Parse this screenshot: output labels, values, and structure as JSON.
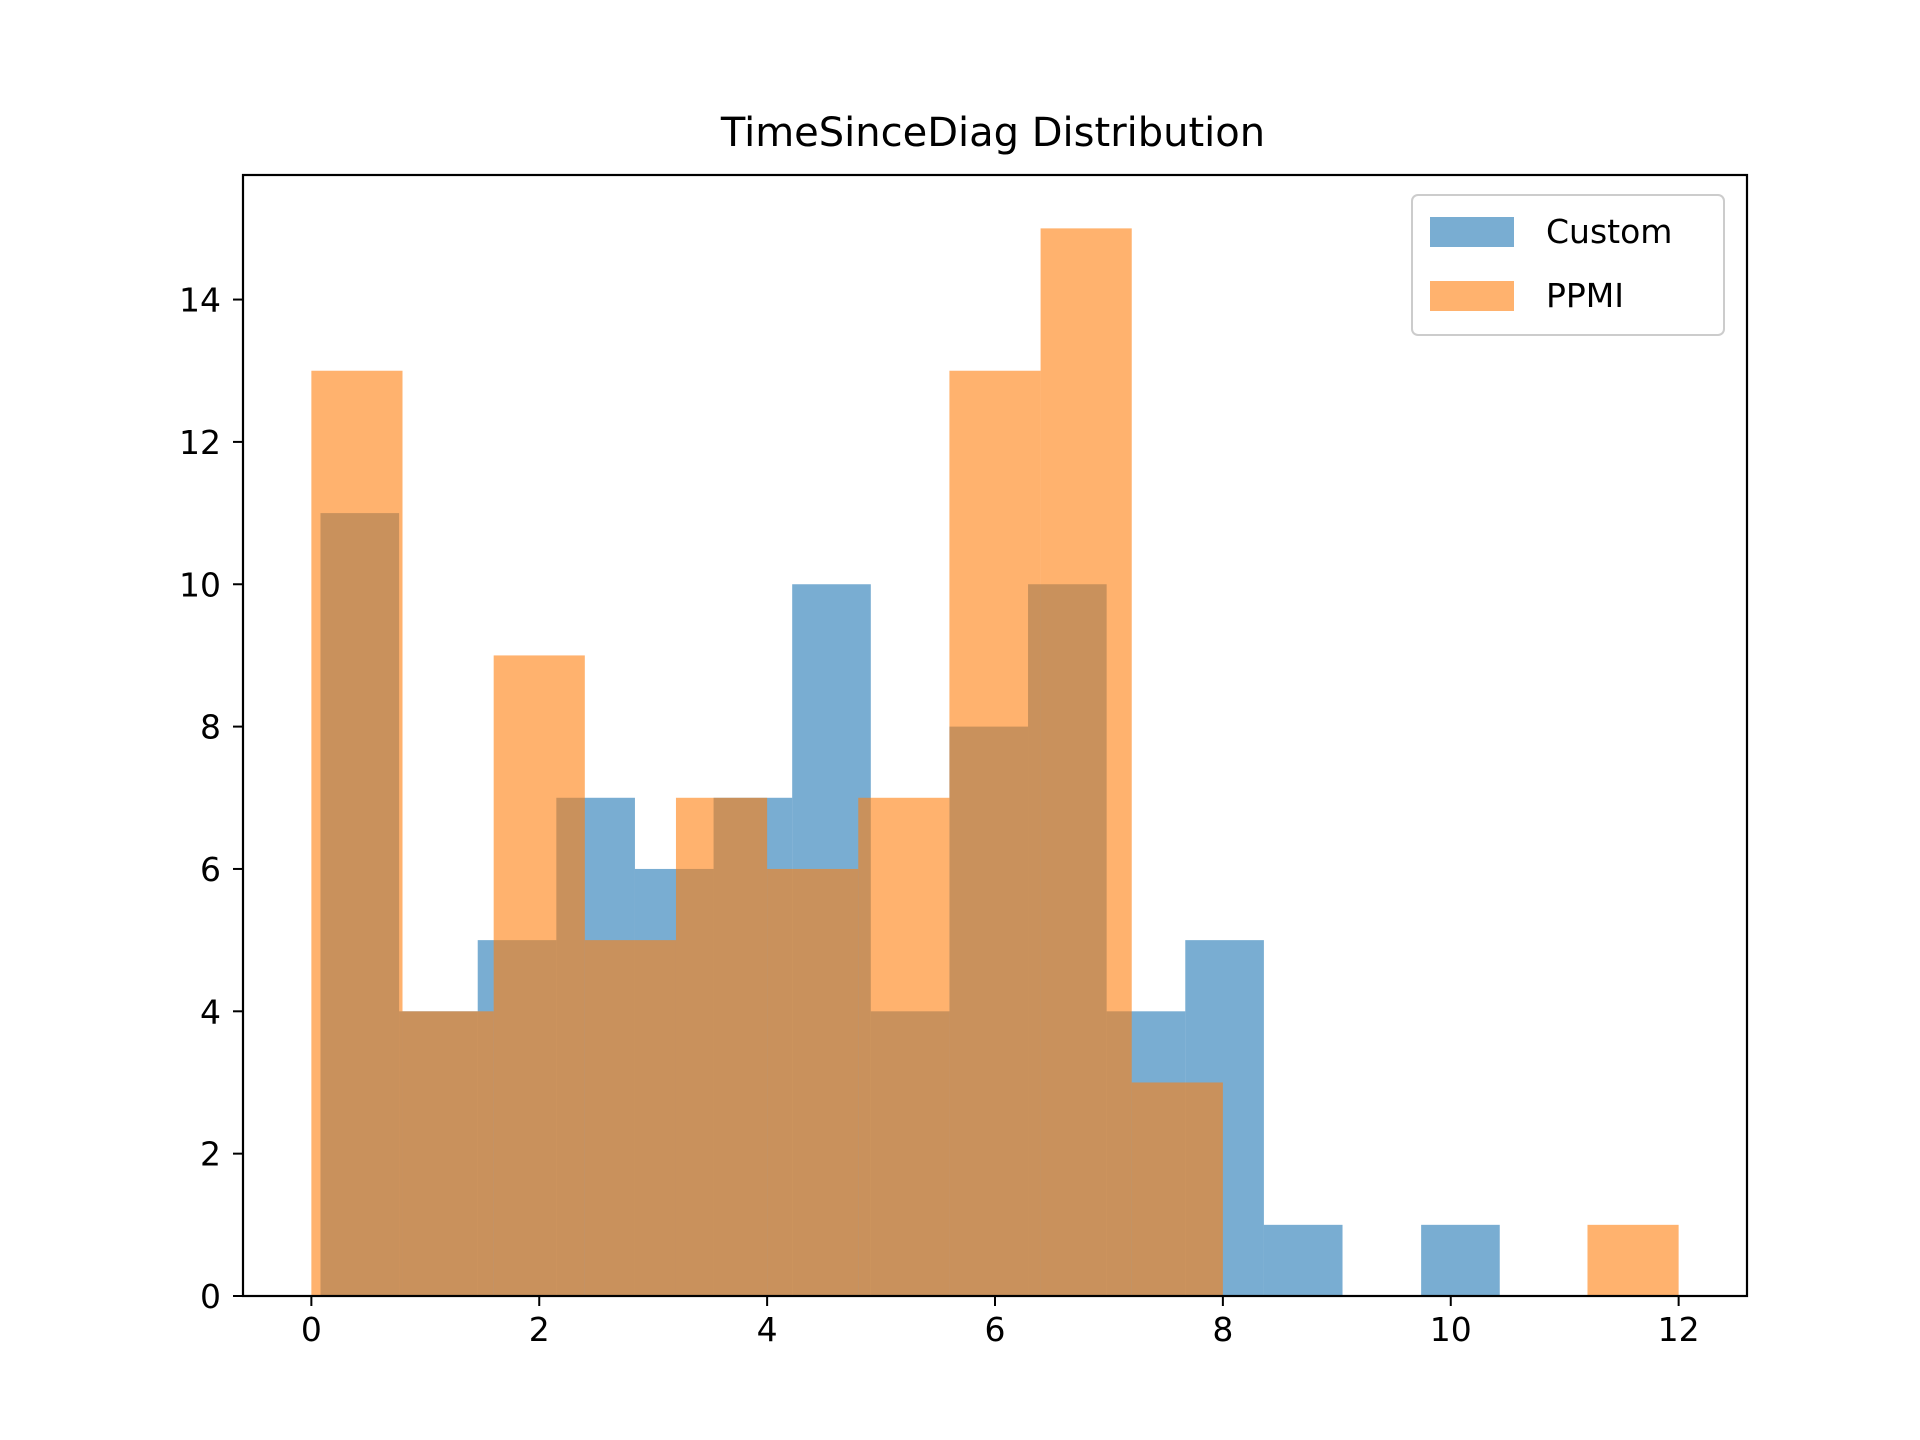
{
  "chart_data": {
    "type": "histogram",
    "title": "TimeSinceDiag Distribution",
    "xlabel": "",
    "ylabel": "",
    "xlim": [
      -0.6,
      12.6
    ],
    "ylim": [
      0,
      15.75
    ],
    "xticks": [
      0,
      2,
      4,
      6,
      8,
      10,
      12
    ],
    "yticks": [
      0,
      2,
      4,
      6,
      8,
      10,
      12,
      14
    ],
    "grid": false,
    "legend_position": "top-right",
    "series": [
      {
        "name": "Custom",
        "color": "#1f77b4",
        "alpha": 0.6,
        "bins": [
          {
            "x0": 0.08,
            "x1": 0.77,
            "count": 11
          },
          {
            "x0": 0.77,
            "x1": 1.46,
            "count": 4
          },
          {
            "x0": 1.46,
            "x1": 2.15,
            "count": 5
          },
          {
            "x0": 2.15,
            "x1": 2.84,
            "count": 7
          },
          {
            "x0": 2.84,
            "x1": 3.53,
            "count": 6
          },
          {
            "x0": 3.53,
            "x1": 4.22,
            "count": 7
          },
          {
            "x0": 4.22,
            "x1": 4.91,
            "count": 10
          },
          {
            "x0": 4.91,
            "x1": 5.6,
            "count": 4
          },
          {
            "x0": 5.6,
            "x1": 6.29,
            "count": 8
          },
          {
            "x0": 6.29,
            "x1": 6.98,
            "count": 10
          },
          {
            "x0": 6.98,
            "x1": 7.67,
            "count": 4
          },
          {
            "x0": 7.67,
            "x1": 8.36,
            "count": 5
          },
          {
            "x0": 8.36,
            "x1": 9.05,
            "count": 1
          },
          {
            "x0": 9.05,
            "x1": 9.74,
            "count": 0
          },
          {
            "x0": 9.74,
            "x1": 10.43,
            "count": 1
          }
        ]
      },
      {
        "name": "PPMI",
        "color": "#ff7f0e",
        "alpha": 0.6,
        "bins": [
          {
            "x0": 0.0,
            "x1": 0.8,
            "count": 13
          },
          {
            "x0": 0.8,
            "x1": 1.6,
            "count": 4
          },
          {
            "x0": 1.6,
            "x1": 2.4,
            "count": 9
          },
          {
            "x0": 2.4,
            "x1": 3.2,
            "count": 5
          },
          {
            "x0": 3.2,
            "x1": 4.0,
            "count": 7
          },
          {
            "x0": 4.0,
            "x1": 4.8,
            "count": 6
          },
          {
            "x0": 4.8,
            "x1": 5.6,
            "count": 7
          },
          {
            "x0": 5.6,
            "x1": 6.4,
            "count": 13
          },
          {
            "x0": 6.4,
            "x1": 7.2,
            "count": 15
          },
          {
            "x0": 7.2,
            "x1": 8.0,
            "count": 3
          },
          {
            "x0": 8.0,
            "x1": 8.8,
            "count": 0
          },
          {
            "x0": 8.8,
            "x1": 9.6,
            "count": 0
          },
          {
            "x0": 9.6,
            "x1": 10.4,
            "count": 0
          },
          {
            "x0": 10.4,
            "x1": 11.2,
            "count": 0
          },
          {
            "x0": 11.2,
            "x1": 12.0,
            "count": 1
          }
        ]
      }
    ]
  }
}
